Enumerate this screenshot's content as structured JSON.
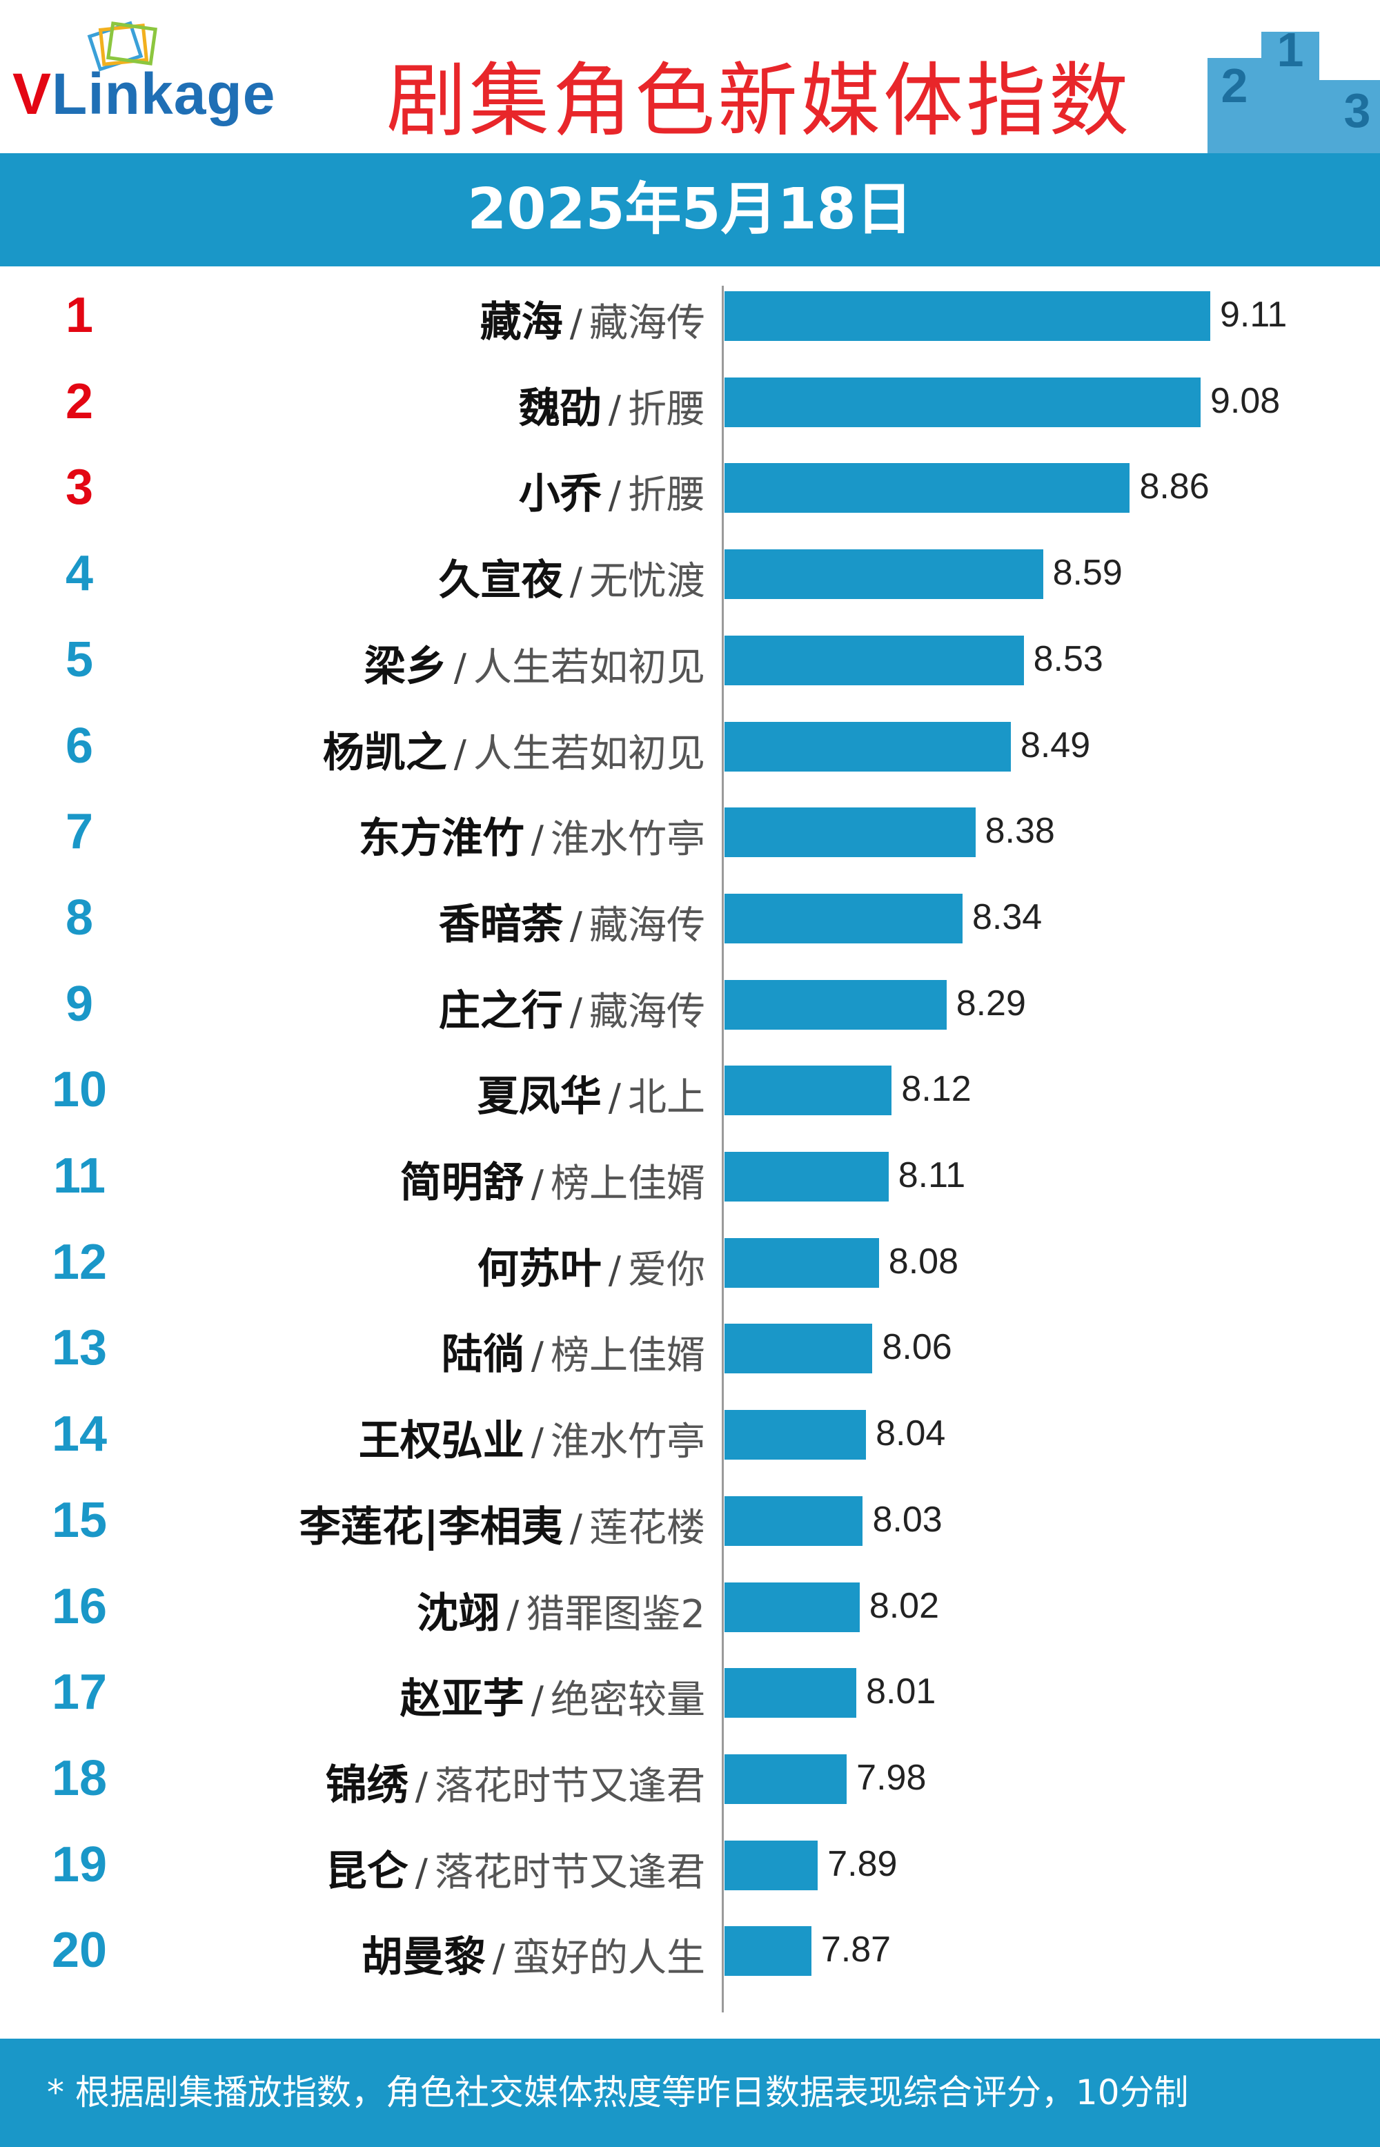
{
  "header": {
    "logo_text_v": "V",
    "logo_text_rest": "Linkage",
    "title": "剧集角色新媒体指数",
    "podium_labels": [
      "2",
      "1",
      "3"
    ]
  },
  "date": "2025年5月18日",
  "colors": {
    "accent": "#1a97c8",
    "title_red": "#e8262a",
    "top3_rank": "#e30613",
    "other_rank": "#1a97c8"
  },
  "chart_data": {
    "type": "bar",
    "orientation": "horizontal",
    "xlim": [
      7.6,
      9.35
    ],
    "rows": [
      {
        "rank": "1",
        "name": "藏海",
        "drama": "藏海传",
        "value": 9.11,
        "value_label": "9.11"
      },
      {
        "rank": "2",
        "name": "魏劭",
        "drama": "折腰",
        "value": 9.08,
        "value_label": "9.08"
      },
      {
        "rank": "3",
        "name": "小乔",
        "drama": "折腰",
        "value": 8.86,
        "value_label": "8.86"
      },
      {
        "rank": "4",
        "name": "久宣夜",
        "drama": "无忧渡",
        "value": 8.59,
        "value_label": "8.59"
      },
      {
        "rank": "5",
        "name": "梁乡",
        "drama": "人生若如初见",
        "value": 8.53,
        "value_label": "8.53"
      },
      {
        "rank": "6",
        "name": "杨凯之",
        "drama": "人生若如初见",
        "value": 8.49,
        "value_label": "8.49"
      },
      {
        "rank": "7",
        "name": "东方淮竹",
        "drama": "淮水竹亭",
        "value": 8.38,
        "value_label": "8.38"
      },
      {
        "rank": "8",
        "name": "香暗荼",
        "drama": "藏海传",
        "value": 8.34,
        "value_label": "8.34"
      },
      {
        "rank": "9",
        "name": "庄之行",
        "drama": "藏海传",
        "value": 8.29,
        "value_label": "8.29"
      },
      {
        "rank": "10",
        "name": "夏凤华",
        "drama": "北上",
        "value": 8.12,
        "value_label": "8.12"
      },
      {
        "rank": "11",
        "name": "简明舒",
        "drama": "榜上佳婿",
        "value": 8.11,
        "value_label": "8.11"
      },
      {
        "rank": "12",
        "name": "何苏叶",
        "drama": "爱你",
        "value": 8.08,
        "value_label": "8.08"
      },
      {
        "rank": "13",
        "name": "陆徜",
        "drama": "榜上佳婿",
        "value": 8.06,
        "value_label": "8.06"
      },
      {
        "rank": "14",
        "name": "王权弘业",
        "drama": "淮水竹亭",
        "value": 8.04,
        "value_label": "8.04"
      },
      {
        "rank": "15",
        "name": "李莲花|李相夷",
        "drama": "莲花楼",
        "value": 8.03,
        "value_label": "8.03"
      },
      {
        "rank": "16",
        "name": "沈翊",
        "drama": "猎罪图鉴2",
        "value": 8.02,
        "value_label": "8.02"
      },
      {
        "rank": "17",
        "name": "赵亚芓",
        "drama": "绝密较量",
        "value": 8.01,
        "value_label": "8.01"
      },
      {
        "rank": "18",
        "name": "锦绣",
        "drama": "落花时节又逢君",
        "value": 7.98,
        "value_label": "7.98"
      },
      {
        "rank": "19",
        "name": "昆仑",
        "drama": "落花时节又逢君",
        "value": 7.89,
        "value_label": "7.89"
      },
      {
        "rank": "20",
        "name": "胡曼黎",
        "drama": "蛮好的人生",
        "value": 7.87,
        "value_label": "7.87"
      }
    ]
  },
  "footer": {
    "note": "* 根据剧集播放指数，角色社交媒体热度等昨日数据表现综合评分，10分制"
  }
}
